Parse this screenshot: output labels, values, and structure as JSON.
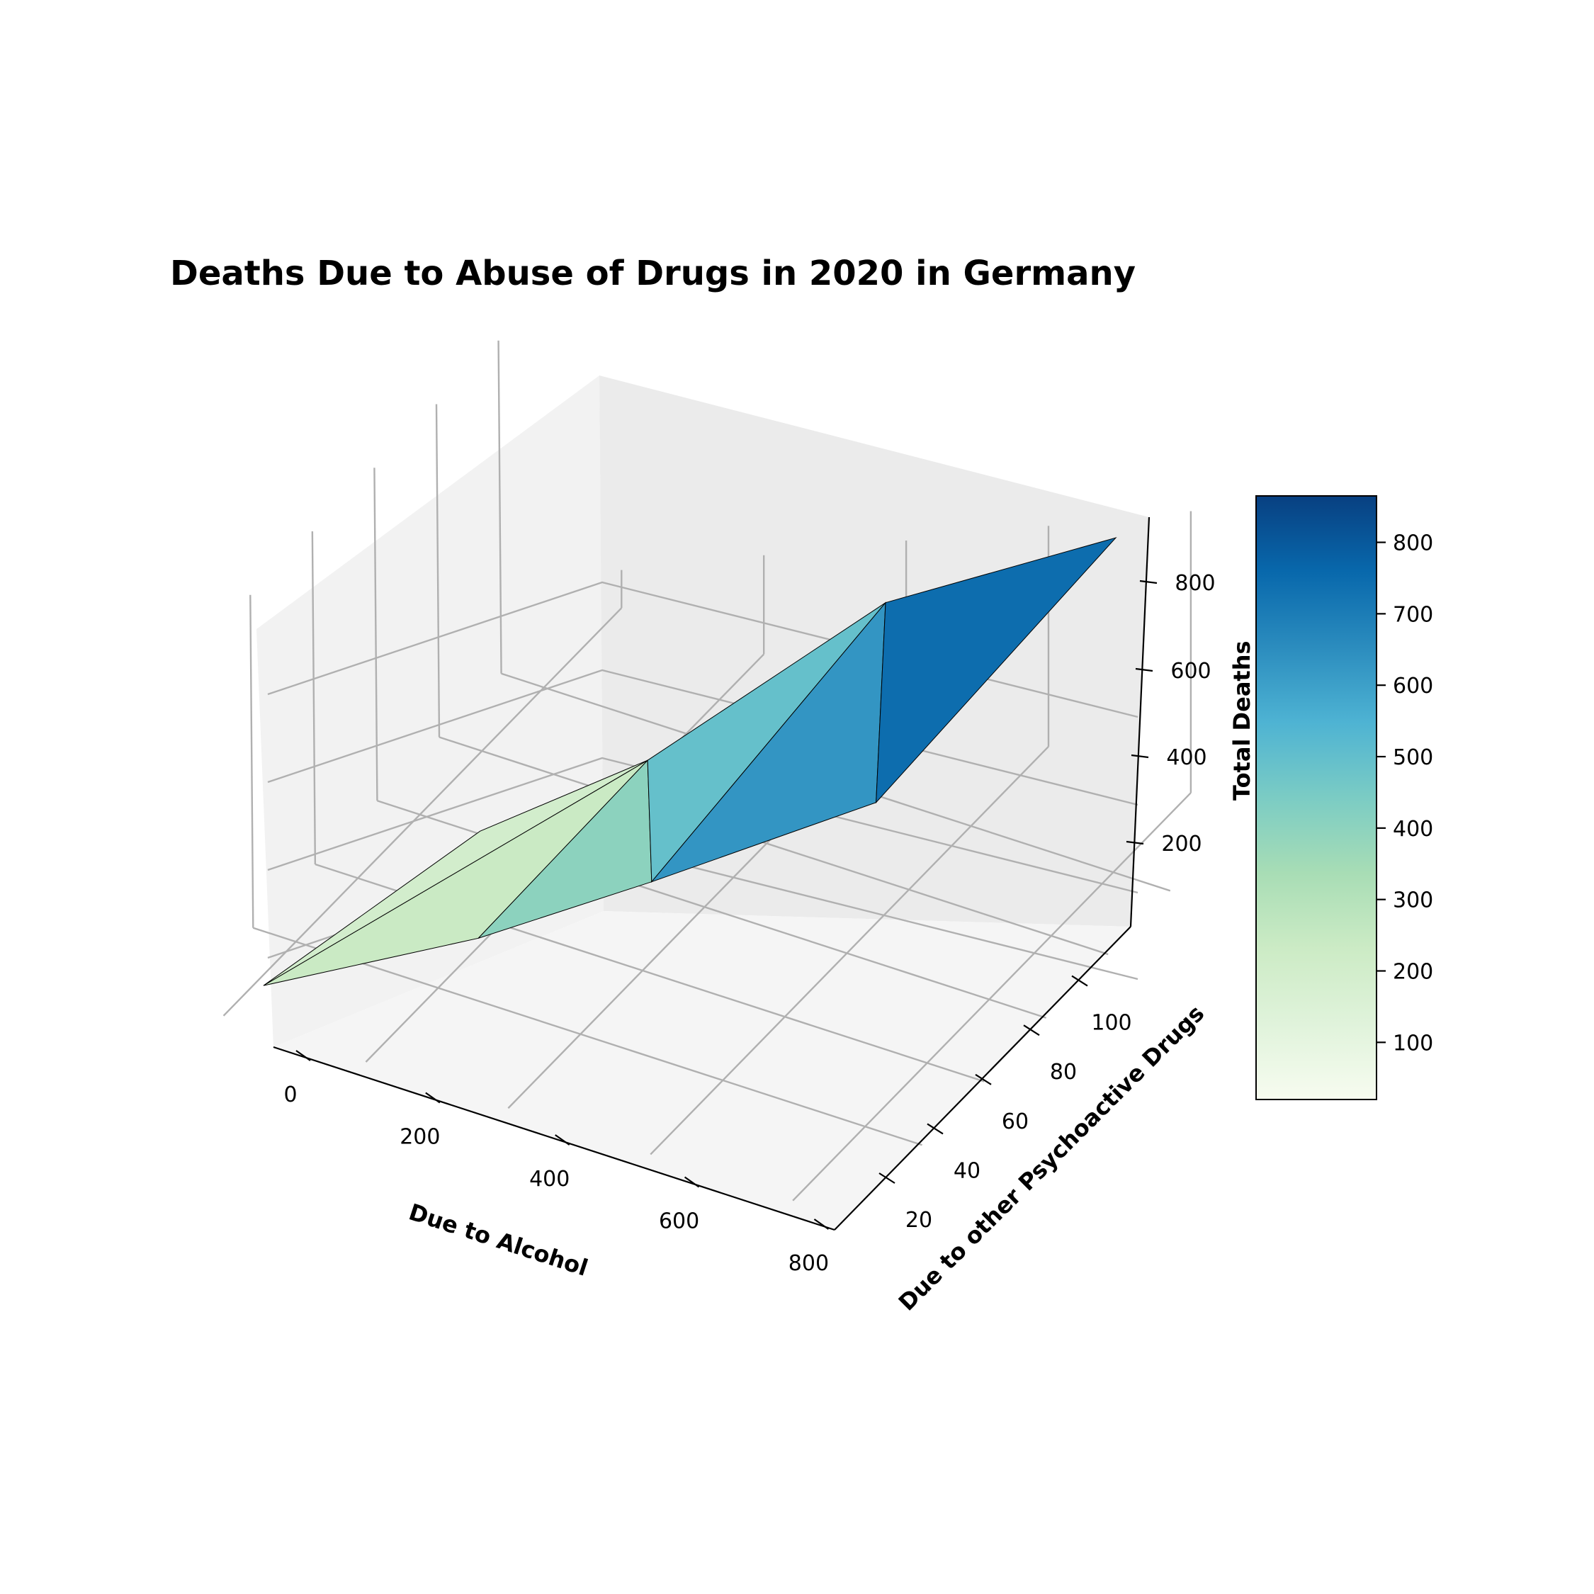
{
  "chart_data": {
    "type": "surface3d",
    "title": "Deaths Due to Abuse of Drugs in 2020 in Germany",
    "xlabel": "Due to Alcohol",
    "ylabel": "Due to other Psychoactive Drugs",
    "zlabel": "Total Deaths",
    "colormap": "GnBu",
    "colormap_stops": [
      "#f7fcf0",
      "#e0f3db",
      "#ccebc5",
      "#a8ddb5",
      "#7bccc4",
      "#4eb3d3",
      "#2b8cbe",
      "#0868ac",
      "#084081"
    ],
    "x_ticks": [
      0,
      200,
      400,
      600,
      800
    ],
    "y_ticks": [
      20,
      40,
      60,
      80,
      100
    ],
    "z_ticks": [
      200,
      400,
      600,
      800
    ],
    "colorbar_ticks": [
      100,
      200,
      300,
      400,
      500,
      600,
      700,
      800
    ],
    "colorbar_range": [
      20,
      865
    ],
    "grid": true,
    "points": [
      {
        "x": 20,
        "y": 5,
        "z": 25
      },
      {
        "x": 150,
        "y": 45,
        "z": 195
      },
      {
        "x": 300,
        "y": 10,
        "z": 310
      },
      {
        "x": 320,
        "y": 60,
        "z": 380
      },
      {
        "x": 500,
        "y": 20,
        "z": 520
      },
      {
        "x": 480,
        "y": 100,
        "z": 580
      },
      {
        "x": 750,
        "y": 35,
        "z": 785
      },
      {
        "x": 760,
        "y": 110,
        "z": 870
      }
    ],
    "triangles": [
      [
        0,
        1,
        3
      ],
      [
        0,
        3,
        2
      ],
      [
        2,
        3,
        4
      ],
      [
        3,
        5,
        4
      ],
      [
        4,
        5,
        6
      ],
      [
        5,
        7,
        6
      ]
    ]
  }
}
